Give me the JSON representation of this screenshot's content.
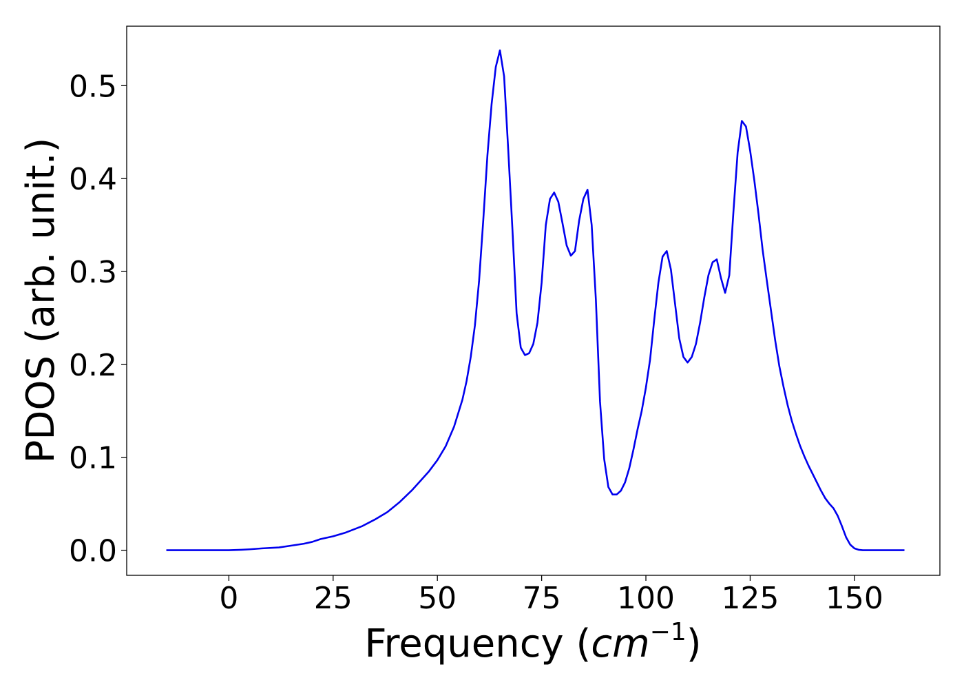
{
  "chart_data": {
    "type": "line",
    "xlabel": "Frequency (",
    "xlabel_math": "cm",
    "xlabel_exponent": "−1",
    "xlabel_close": ")",
    "ylabel": "PDOS (arb. unit.)",
    "xlim": [
      -24.5,
      170.5
    ],
    "ylim": [
      -0.027,
      0.564
    ],
    "x_ticks": [
      0,
      25,
      50,
      75,
      100,
      125,
      150
    ],
    "x_tick_labels": [
      "0",
      "25",
      "50",
      "75",
      "100",
      "125",
      "150"
    ],
    "y_ticks": [
      0.0,
      0.1,
      0.2,
      0.3,
      0.4,
      0.5
    ],
    "y_tick_labels": [
      "0.0",
      "0.1",
      "0.2",
      "0.3",
      "0.4",
      "0.5"
    ],
    "grid": false,
    "line_color": "#0000ee",
    "series": [
      {
        "x": [
          -15,
          -5,
          0,
          3,
          5,
          8,
          12,
          15,
          18,
          20,
          22,
          25,
          28,
          32,
          35,
          38,
          41,
          44,
          46,
          48,
          50,
          52,
          54,
          56,
          57,
          58,
          59,
          60,
          61,
          62,
          63,
          64,
          65,
          66,
          67,
          68,
          69,
          70,
          71,
          72,
          73,
          74,
          75,
          76,
          77,
          78,
          79,
          80,
          81,
          82,
          83,
          84,
          85,
          86,
          87,
          88,
          89,
          90,
          91,
          92,
          93,
          94,
          95,
          96,
          97,
          98,
          99,
          100,
          101,
          102,
          103,
          104,
          105,
          106,
          107,
          108,
          109,
          110,
          111,
          112,
          113,
          114,
          115,
          116,
          117,
          118,
          119,
          120,
          121,
          122,
          123,
          124,
          125,
          126,
          127,
          128,
          129,
          130,
          131,
          132,
          133,
          134,
          135,
          136,
          137,
          138,
          139,
          140,
          141,
          142,
          143,
          144,
          145,
          146,
          147,
          148,
          149,
          150,
          151,
          152,
          155,
          162
        ],
        "y": [
          0,
          0,
          0,
          0.0005,
          0.001,
          0.002,
          0.003,
          0.005,
          0.007,
          0.009,
          0.012,
          0.015,
          0.019,
          0.026,
          0.033,
          0.041,
          0.052,
          0.065,
          0.075,
          0.085,
          0.097,
          0.112,
          0.133,
          0.162,
          0.182,
          0.208,
          0.242,
          0.29,
          0.355,
          0.425,
          0.48,
          0.52,
          0.538,
          0.51,
          0.43,
          0.345,
          0.255,
          0.218,
          0.21,
          0.212,
          0.222,
          0.245,
          0.288,
          0.35,
          0.378,
          0.385,
          0.375,
          0.352,
          0.328,
          0.317,
          0.322,
          0.355,
          0.378,
          0.388,
          0.35,
          0.27,
          0.16,
          0.098,
          0.068,
          0.06,
          0.06,
          0.064,
          0.073,
          0.088,
          0.108,
          0.13,
          0.15,
          0.175,
          0.205,
          0.248,
          0.288,
          0.316,
          0.322,
          0.302,
          0.265,
          0.228,
          0.208,
          0.202,
          0.208,
          0.222,
          0.245,
          0.272,
          0.296,
          0.31,
          0.313,
          0.293,
          0.277,
          0.296,
          0.365,
          0.428,
          0.462,
          0.456,
          0.43,
          0.398,
          0.362,
          0.323,
          0.29,
          0.258,
          0.226,
          0.198,
          0.176,
          0.156,
          0.139,
          0.125,
          0.112,
          0.101,
          0.091,
          0.082,
          0.073,
          0.064,
          0.056,
          0.05,
          0.045,
          0.037,
          0.026,
          0.014,
          0.006,
          0.002,
          0.0005,
          0,
          0,
          0
        ]
      }
    ]
  }
}
